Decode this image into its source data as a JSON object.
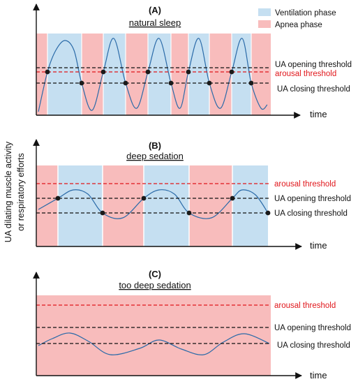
{
  "legend": {
    "ventilation": "Ventilation phase",
    "apnea": "Apnea phase",
    "ventilation_color": "#c5dff1",
    "apnea_color": "#f8bcbc"
  },
  "y_axis_label_line1": "UA dilating muscle activity",
  "y_axis_label_line2": "or respiratory efforts",
  "x_axis_label": "time",
  "colors": {
    "curve": "#2a6aa8",
    "arousal": "#e0161b",
    "threshold": "#111111",
    "dot": "#1a1a1a"
  },
  "panels": [
    {
      "letter": "(A)",
      "title": "natural sleep",
      "lines": {
        "opening": "UA opening threshold",
        "arousal": "arousal threshold",
        "closing": "UA closing threshold"
      },
      "phases": [
        "apnea",
        "ventilation",
        "apnea",
        "ventilation",
        "apnea",
        "ventilation",
        "apnea",
        "ventilation",
        "apnea",
        "ventilation",
        "apnea"
      ]
    },
    {
      "letter": "(B)",
      "title": "deep sedation",
      "lines": {
        "arousal": "arousal threshold",
        "opening": "UA opening threshold",
        "closing": "UA closing threshold"
      },
      "phases": [
        "apnea",
        "ventilation",
        "apnea",
        "ventilation",
        "apnea",
        "ventilation"
      ]
    },
    {
      "letter": "(C)",
      "title": "too deep sedation",
      "lines": {
        "arousal": "arousal threshold",
        "opening": "UA opening threshold",
        "closing": "UA closing threshold"
      },
      "phases": [
        "apnea"
      ]
    }
  ]
}
